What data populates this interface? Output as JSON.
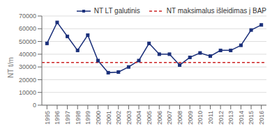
{
  "chart_data": {
    "type": "line",
    "x": [
      1995,
      1996,
      1997,
      1998,
      1999,
      2000,
      2001,
      2002,
      2003,
      2004,
      2005,
      2006,
      2007,
      2008,
      2009,
      2010,
      2011,
      2012,
      2013,
      2014,
      2015,
      2016
    ],
    "series": [
      {
        "name": "NT LT galutinis",
        "color": "#1a2f7a",
        "marker": "square",
        "values": [
          48500,
          65000,
          54000,
          43000,
          55000,
          35000,
          25500,
          26000,
          30000,
          35000,
          48500,
          40000,
          40000,
          31500,
          37500,
          41000,
          38500,
          43000,
          43000,
          47000,
          59000,
          63000
        ]
      },
      {
        "name": "NT maksimalus išleidimas į BAP",
        "color": "#cc2222",
        "type": "hline",
        "line_style": "dashed",
        "value": 33500
      }
    ],
    "ylabel": "NT t/m",
    "xlim": [
      1994.5,
      2016.5
    ],
    "xticks": [
      1995,
      1996,
      1997,
      1998,
      1999,
      2000,
      2001,
      2002,
      2003,
      2004,
      2005,
      2006,
      2007,
      2008,
      2009,
      2010,
      2011,
      2012,
      2013,
      2014,
      2015,
      2016
    ],
    "ylim": [
      0,
      70000
    ],
    "yticks": [
      0,
      10000,
      20000,
      30000,
      40000,
      50000,
      60000,
      70000
    ],
    "grid": true,
    "legend": "upper right"
  }
}
